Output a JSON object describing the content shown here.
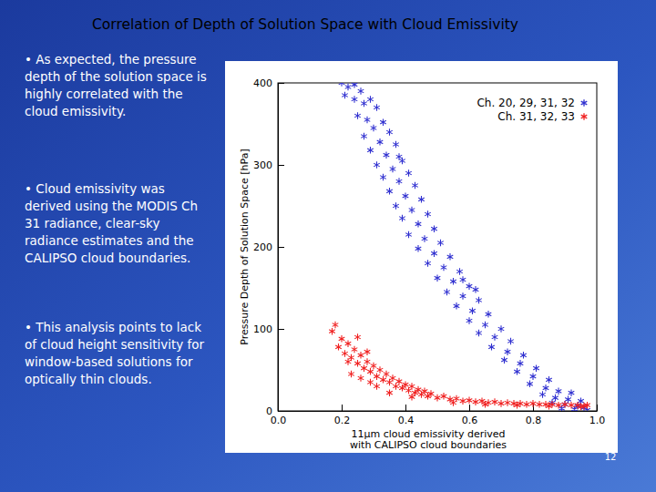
{
  "slide": {
    "title": "Correlation of Depth of Solution Space with Cloud Emissivity",
    "bullets": [
      "• As expected, the pressure depth of the solution space is highly correlated with the cloud emissivity.",
      "• Cloud emissivity was derived using the MODIS Ch 31 radiance, clear-sky radiance estimates and the CALIPSO cloud boundaries.",
      "• This analysis points to lack of cloud height sensitivity for window-based solutions for optically thin clouds."
    ],
    "page_number": "12"
  },
  "chart_data": {
    "type": "scatter",
    "xlabel": "11μm cloud emissivity derived\nwith CALIPSO cloud boundaries",
    "ylabel": "Pressure Depth of Solution Space [hPa]",
    "xlim": [
      0,
      1
    ],
    "ylim": [
      0,
      400
    ],
    "xticks": [
      {
        "value": 0,
        "label": "0.0"
      },
      0.2,
      0.4,
      0.6,
      0.8,
      {
        "value": 1,
        "label": "1.0"
      }
    ],
    "yticks": [
      0,
      100,
      200,
      300,
      400
    ],
    "grid": false,
    "legend": "upper right",
    "series": [
      {
        "name": "Ch. 20, 29, 31, 32",
        "color": "#3030d0",
        "marker": "asterisk",
        "x": [
          0.2,
          0.22,
          0.24,
          0.26,
          0.21,
          0.27,
          0.29,
          0.31,
          0.25,
          0.28,
          0.33,
          0.3,
          0.35,
          0.27,
          0.32,
          0.37,
          0.29,
          0.34,
          0.39,
          0.31,
          0.36,
          0.41,
          0.33,
          0.38,
          0.43,
          0.35,
          0.4,
          0.45,
          0.37,
          0.42,
          0.47,
          0.39,
          0.44,
          0.49,
          0.41,
          0.46,
          0.51,
          0.44,
          0.49,
          0.54,
          0.47,
          0.52,
          0.57,
          0.5,
          0.55,
          0.6,
          0.53,
          0.58,
          0.63,
          0.56,
          0.61,
          0.66,
          0.6,
          0.65,
          0.7,
          0.63,
          0.68,
          0.73,
          0.67,
          0.72,
          0.77,
          0.71,
          0.76,
          0.81,
          0.75,
          0.8,
          0.85,
          0.79,
          0.84,
          0.88,
          0.83,
          0.87,
          0.91,
          0.86,
          0.9,
          0.94,
          0.89,
          0.93,
          0.96,
          0.97,
          0.92,
          0.95,
          0.62,
          0.24,
          0.38,
          0.58
        ],
        "values": [
          400,
          395,
          398,
          390,
          385,
          375,
          380,
          370,
          360,
          355,
          352,
          345,
          340,
          335,
          328,
          325,
          318,
          312,
          305,
          300,
          295,
          290,
          285,
          280,
          275,
          268,
          262,
          258,
          250,
          245,
          240,
          235,
          228,
          222,
          215,
          210,
          205,
          198,
          192,
          188,
          180,
          175,
          170,
          162,
          158,
          152,
          145,
          140,
          135,
          128,
          122,
          118,
          110,
          105,
          100,
          95,
          90,
          85,
          78,
          72,
          68,
          62,
          58,
          52,
          48,
          42,
          38,
          33,
          28,
          24,
          20,
          16,
          14,
          10,
          8,
          6,
          3,
          2,
          4,
          1,
          22,
          12,
          148,
          380,
          310,
          160
        ]
      },
      {
        "name": "Ch. 31, 32, 33",
        "color": "#f02020",
        "marker": "asterisk",
        "x": [
          0.17,
          0.18,
          0.2,
          0.19,
          0.21,
          0.22,
          0.23,
          0.24,
          0.25,
          0.26,
          0.27,
          0.28,
          0.29,
          0.3,
          0.31,
          0.32,
          0.33,
          0.34,
          0.35,
          0.36,
          0.37,
          0.38,
          0.39,
          0.4,
          0.41,
          0.42,
          0.43,
          0.44,
          0.45,
          0.46,
          0.47,
          0.48,
          0.5,
          0.52,
          0.54,
          0.56,
          0.58,
          0.6,
          0.62,
          0.64,
          0.66,
          0.68,
          0.7,
          0.72,
          0.74,
          0.76,
          0.78,
          0.8,
          0.82,
          0.84,
          0.86,
          0.88,
          0.9,
          0.92,
          0.94,
          0.96,
          0.97,
          0.23,
          0.26,
          0.29,
          0.25,
          0.22,
          0.28,
          0.31,
          0.35,
          0.42,
          0.55,
          0.65,
          0.75,
          0.85,
          0.95
        ],
        "values": [
          97,
          105,
          88,
          78,
          70,
          82,
          65,
          75,
          58,
          68,
          52,
          60,
          48,
          55,
          42,
          50,
          38,
          45,
          35,
          40,
          30,
          36,
          28,
          32,
          25,
          30,
          22,
          26,
          20,
          24,
          18,
          21,
          16,
          18,
          14,
          15,
          12,
          13,
          11,
          12,
          10,
          11,
          9,
          10,
          9,
          9,
          8,
          9,
          8,
          8,
          8,
          7,
          8,
          7,
          7,
          6,
          7,
          45,
          40,
          35,
          90,
          60,
          72,
          30,
          22,
          17,
          10,
          8,
          7,
          6,
          5
        ]
      }
    ]
  }
}
